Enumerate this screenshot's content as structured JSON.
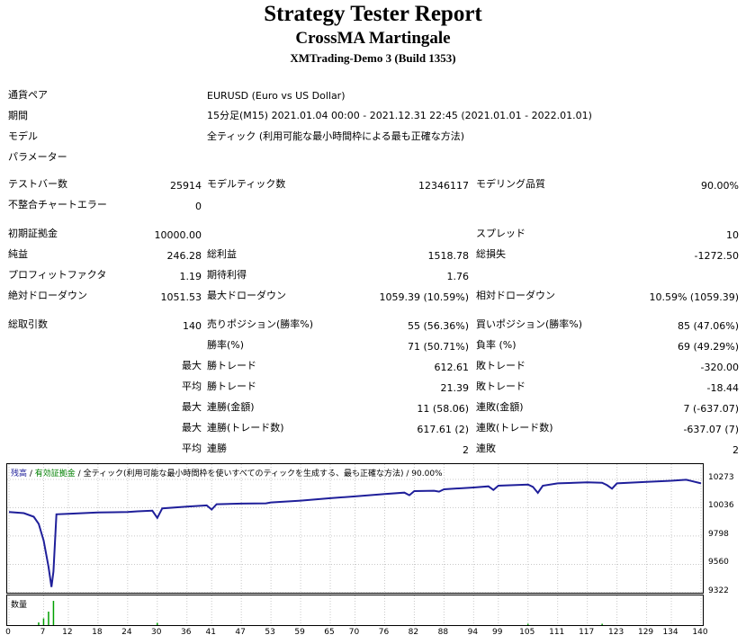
{
  "header": {
    "title": "Strategy Tester Report",
    "ea_name": "CrossMA Martingale",
    "server": "XMTrading-Demo 3 (Build 1353)"
  },
  "info": {
    "symbol_label": "通貨ペア",
    "symbol_value": "EURUSD (Euro vs US Dollar)",
    "period_label": "期間",
    "period_value": "15分足(M15) 2021.01.04 00:00 - 2021.12.31 22:45 (2021.01.01 - 2022.01.01)",
    "model_label": "モデル",
    "model_value": "全ティック (利用可能な最小時間枠による最も正確な方法)",
    "params_label": "パラメーター"
  },
  "stats": {
    "bars_label": "テストバー数",
    "bars_value": "25914",
    "ticks_label": "モデルティック数",
    "ticks_value": "12346117",
    "quality_label": "モデリング品質",
    "quality_value": "90.00%",
    "mismatch_label": "不整合チャートエラー",
    "mismatch_value": "0",
    "deposit_label": "初期証拠金",
    "deposit_value": "10000.00",
    "spread_label": "スプレッド",
    "spread_value": "10",
    "net_label": "純益",
    "net_value": "246.28",
    "gross_profit_label": "総利益",
    "gross_profit_value": "1518.78",
    "gross_loss_label": "総損失",
    "gross_loss_value": "-1272.50",
    "pf_label": "プロフィットファクタ",
    "pf_value": "1.19",
    "expected_label": "期待利得",
    "expected_value": "1.76",
    "abs_dd_label": "絶対ドローダウン",
    "abs_dd_value": "1051.53",
    "max_dd_label": "最大ドローダウン",
    "max_dd_value": "1059.39 (10.59%)",
    "rel_dd_label": "相対ドローダウン",
    "rel_dd_value": "10.59% (1059.39)",
    "trades_label": "総取引数",
    "trades_value": "140",
    "short_label": "売りポジション(勝率%)",
    "short_value": "55 (56.36%)",
    "long_label": "買いポジション(勝率%)",
    "long_value": "85 (47.06%)",
    "win_label": "勝率(%)",
    "win_value": "71 (50.71%)",
    "loss_label": "負率 (%)",
    "loss_value": "69 (49.29%)",
    "max_prefix": "最大",
    "avg_prefix": "平均",
    "largest_win_label": "勝トレード",
    "largest_win_value": "612.61",
    "largest_loss_label": "敗トレード",
    "largest_loss_value": "-320.00",
    "avg_win_label": "勝トレード",
    "avg_win_value": "21.39",
    "avg_loss_label": "敗トレード",
    "avg_loss_value": "-18.44",
    "cons_wins_label": "連勝(金額)",
    "cons_wins_value": "11 (58.06)",
    "cons_losses_label": "連敗(金額)",
    "cons_losses_value": "7 (-637.07)",
    "cons_profit_label": "連勝(トレード数)",
    "cons_profit_value": "617.61 (2)",
    "cons_loss_label": "連敗(トレード数)",
    "cons_loss_value": "-637.07 (7)",
    "avg_cons_wins_label": "連勝",
    "avg_cons_wins_value": "2",
    "avg_cons_losses_label": "連敗",
    "avg_cons_losses_value": "2"
  },
  "chart_data": {
    "type": "line",
    "legend_balance": "残高",
    "legend_sep1": " / ",
    "legend_equity": "有効証拠金",
    "legend_sep2": " / ",
    "legend_model": "全ティック(利用可能な最小時間枠を使いすべてのティックを生成する、最も正確な方法)",
    "legend_sep3": " / ",
    "legend_quality": "90.00%",
    "volume_label": "数量",
    "colors": {
      "balance": "#1f1f9a",
      "volume": "#00a000",
      "legend_equity": "#008000"
    },
    "y_ticks": [
      "10273",
      "10036",
      "9798",
      "9560",
      "9322"
    ],
    "x_ticks": [
      "0",
      "7",
      "12",
      "18",
      "24",
      "30",
      "36",
      "41",
      "47",
      "53",
      "59",
      "65",
      "70",
      "76",
      "82",
      "88",
      "94",
      "99",
      "105",
      "111",
      "117",
      "123",
      "129",
      "134",
      "140"
    ],
    "ylim": [
      9322,
      10273
    ],
    "xlim": [
      0,
      140
    ],
    "points": [
      [
        0,
        10000
      ],
      [
        3,
        9990
      ],
      [
        5,
        9960
      ],
      [
        6,
        9900
      ],
      [
        7,
        9760
      ],
      [
        8,
        9540
      ],
      [
        8.6,
        9370
      ],
      [
        9,
        9500
      ],
      [
        9.6,
        9980
      ],
      [
        12,
        9985
      ],
      [
        18,
        9995
      ],
      [
        24,
        10000
      ],
      [
        26,
        10005
      ],
      [
        29,
        10010
      ],
      [
        30,
        9950
      ],
      [
        31,
        10030
      ],
      [
        36,
        10045
      ],
      [
        40,
        10055
      ],
      [
        41,
        10020
      ],
      [
        42,
        10065
      ],
      [
        47,
        10070
      ],
      [
        52,
        10072
      ],
      [
        53,
        10080
      ],
      [
        59,
        10095
      ],
      [
        65,
        10115
      ],
      [
        70,
        10130
      ],
      [
        76,
        10150
      ],
      [
        80,
        10162
      ],
      [
        81,
        10140
      ],
      [
        82,
        10175
      ],
      [
        86,
        10178
      ],
      [
        87,
        10170
      ],
      [
        88,
        10190
      ],
      [
        94,
        10205
      ],
      [
        97,
        10215
      ],
      [
        98,
        10185
      ],
      [
        99,
        10220
      ],
      [
        105,
        10230
      ],
      [
        106,
        10210
      ],
      [
        107,
        10160
      ],
      [
        108,
        10220
      ],
      [
        111,
        10240
      ],
      [
        117,
        10248
      ],
      [
        120,
        10245
      ],
      [
        121,
        10225
      ],
      [
        122,
        10195
      ],
      [
        123,
        10240
      ],
      [
        129,
        10252
      ],
      [
        134,
        10262
      ],
      [
        137,
        10270
      ],
      [
        138,
        10260
      ],
      [
        140,
        10240
      ]
    ],
    "volumes": [
      [
        6,
        0.1
      ],
      [
        7,
        0.25
      ],
      [
        8,
        0.5
      ],
      [
        9,
        0.9
      ],
      [
        30,
        0.08
      ],
      [
        105,
        0.05
      ],
      [
        120,
        0.05
      ]
    ]
  }
}
